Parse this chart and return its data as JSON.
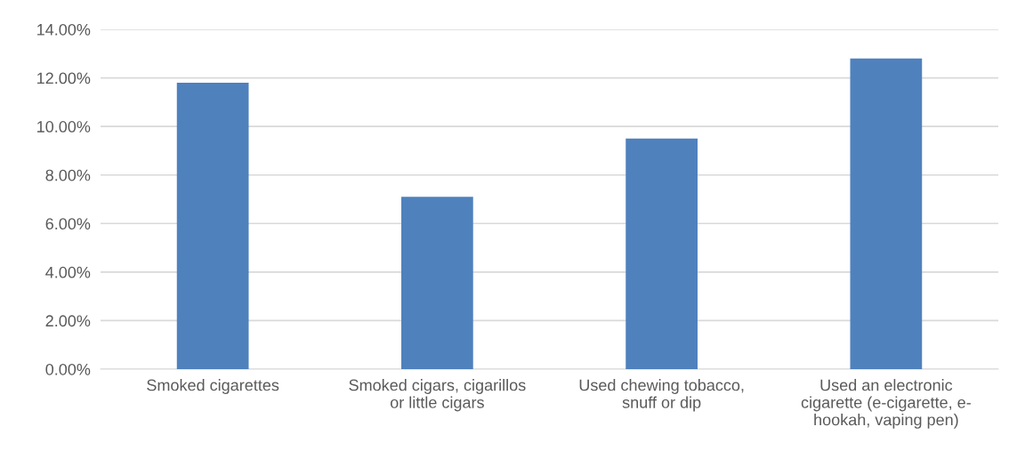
{
  "chart_data": {
    "type": "bar",
    "categories": [
      "Smoked cigarettes",
      "Smoked cigars, cigarillos\nor little cigars",
      "Used chewing tobacco,\nsnuff or dip",
      "Used an electronic\ncigarette (e-cigarette, e-\nhookah, vaping pen)"
    ],
    "values": [
      11.8,
      7.1,
      9.5,
      12.8
    ],
    "color": "#4f81bd",
    "ylim": [
      0,
      14
    ],
    "yticks": [
      {
        "value": 0,
        "label": "0.00%"
      },
      {
        "value": 2,
        "label": "2.00%"
      },
      {
        "value": 4,
        "label": "4.00%"
      },
      {
        "value": 6,
        "label": "6.00%"
      },
      {
        "value": 8,
        "label": "8.00%"
      },
      {
        "value": 10,
        "label": "10.00%"
      },
      {
        "value": 12,
        "label": "12.00%"
      },
      {
        "value": 14,
        "label": "14.00%"
      }
    ],
    "grid": "y",
    "legend": false
  }
}
